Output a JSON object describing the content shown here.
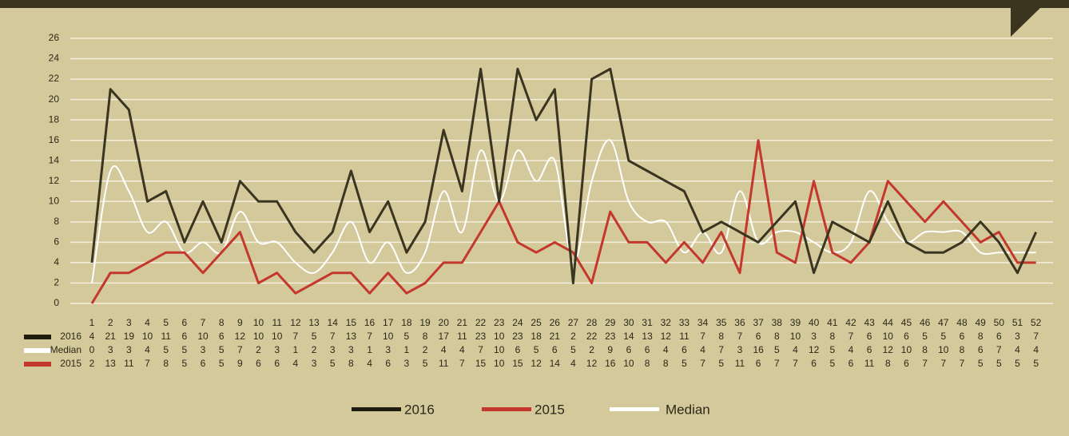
{
  "chart_data": {
    "type": "line",
    "categories": [
      1,
      2,
      3,
      4,
      5,
      6,
      7,
      8,
      9,
      10,
      11,
      12,
      13,
      14,
      15,
      16,
      17,
      18,
      19,
      20,
      21,
      22,
      23,
      24,
      25,
      26,
      27,
      28,
      29,
      30,
      31,
      32,
      33,
      34,
      35,
      36,
      37,
      38,
      39,
      40,
      41,
      42,
      43,
      44,
      45,
      46,
      47,
      48,
      49,
      50,
      51,
      52
    ],
    "series": [
      {
        "name": "2016",
        "color": "#3a3520",
        "values": [
          4,
          21,
          19,
          10,
          11,
          6,
          10,
          6,
          12,
          10,
          10,
          7,
          5,
          7,
          13,
          7,
          10,
          5,
          8,
          17,
          11,
          23,
          10,
          23,
          18,
          21,
          2,
          22,
          23,
          14,
          13,
          12,
          11,
          7,
          8,
          7,
          6,
          8,
          10,
          3,
          8,
          7,
          6,
          10,
          6,
          5,
          5,
          6,
          8,
          6,
          3,
          7
        ]
      },
      {
        "name": "Median",
        "color": "#c4372c",
        "values": [
          0,
          3,
          3,
          4,
          5,
          5,
          3,
          5,
          7,
          2,
          3,
          1,
          2,
          3,
          3,
          1,
          3,
          1,
          2,
          4,
          4,
          7,
          10,
          6,
          5,
          6,
          5,
          2,
          9,
          6,
          6,
          4,
          6,
          4,
          7,
          3,
          16,
          5,
          4,
          12,
          5,
          4,
          6,
          12,
          10,
          8,
          10,
          8,
          6,
          7,
          4,
          4
        ]
      },
      {
        "name": "2015",
        "color": "#ffffff",
        "smooth": true,
        "values": [
          2,
          13,
          11,
          7,
          8,
          5,
          6,
          5,
          9,
          6,
          6,
          4,
          3,
          5,
          8,
          4,
          6,
          3,
          5,
          11,
          7,
          15,
          10,
          15,
          12,
          14,
          4,
          12,
          16,
          10,
          8,
          8,
          5,
          7,
          5,
          11,
          6,
          7,
          7,
          6,
          5,
          6,
          11,
          8,
          6,
          7,
          7,
          7,
          5,
          5,
          5,
          5
        ]
      }
    ],
    "legend": [
      {
        "name": "2016",
        "color": "#1e1b10"
      },
      {
        "name": "2015",
        "color": "#c4372c"
      },
      {
        "name": "Median",
        "color": "#ffffff"
      }
    ],
    "ylim": [
      0,
      26
    ],
    "yticks": [
      0,
      2,
      4,
      6,
      8,
      10,
      12,
      14,
      16,
      18,
      20,
      22,
      24,
      26
    ],
    "grid": true
  }
}
